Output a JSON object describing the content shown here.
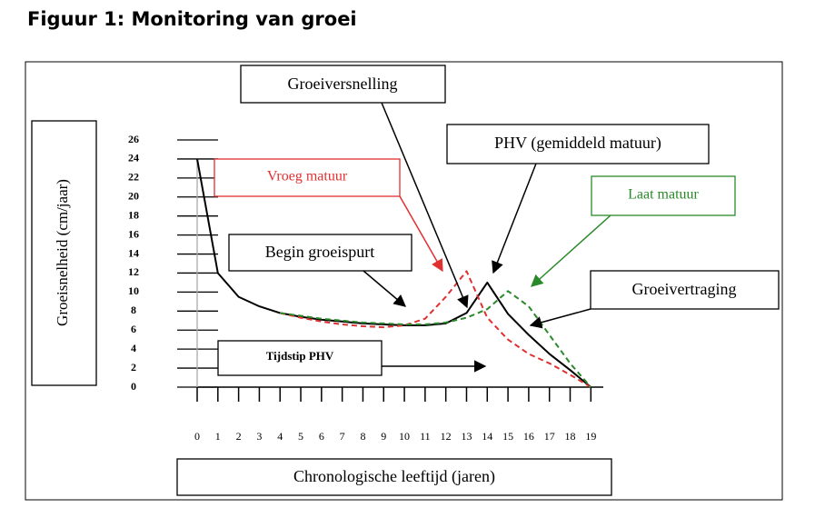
{
  "chart_data": {
    "type": "line",
    "title": "Figuur 1: Monitoring van groei",
    "xlabel": "Chronologische leeftijd (jaren)",
    "ylabel": "Groeisnelheid (cm/jaar)",
    "xlim": [
      0,
      19.6
    ],
    "ylim": [
      0,
      26
    ],
    "xticks": [
      0,
      1,
      2,
      3,
      4,
      5,
      6,
      7,
      8,
      9,
      10,
      11,
      12,
      13,
      14,
      15,
      16,
      17,
      18,
      19
    ],
    "yticks": [
      0,
      2,
      4,
      6,
      8,
      10,
      12,
      14,
      16,
      18,
      20,
      22,
      24,
      26
    ],
    "series": [
      {
        "color": "#000000",
        "style": "solid",
        "x": [
          0,
          1,
          2,
          3,
          4,
          5,
          6,
          7,
          8,
          9,
          10,
          11,
          12,
          13,
          14,
          15,
          16,
          17,
          18,
          19
        ],
        "values": [
          24,
          12,
          9.5,
          8.5,
          7.8,
          7.4,
          7.1,
          6.9,
          6.7,
          6.6,
          6.5,
          6.5,
          6.7,
          7.8,
          11,
          7.7,
          5.5,
          3.5,
          1.8,
          0
        ]
      },
      {
        "color": "#e03030",
        "style": "dashed",
        "x": [
          4,
          5,
          6,
          7,
          8,
          9,
          10,
          11,
          12,
          13,
          14,
          15,
          16,
          17,
          18,
          19
        ],
        "values": [
          7.8,
          7.3,
          6.9,
          6.6,
          6.4,
          6.3,
          6.5,
          7.2,
          9.5,
          12.2,
          7.3,
          5,
          3.5,
          2.5,
          1.3,
          0
        ]
      },
      {
        "color": "#2a8a2a",
        "style": "dashed",
        "x": [
          4,
          5,
          6,
          7,
          8,
          9,
          10,
          11,
          12,
          13,
          14,
          15,
          16,
          17,
          18,
          19
        ],
        "values": [
          7.8,
          7.5,
          7.2,
          7,
          6.8,
          6.7,
          6.6,
          6.6,
          6.8,
          7.3,
          8.2,
          10.1,
          8.5,
          5.5,
          2.5,
          0
        ]
      }
    ],
    "annotations": [
      "Groeiversnelling",
      "PHV (gemiddeld matuur)",
      "Vroeg matuur",
      "Laat matuur",
      "Begin groeispurt",
      "Groeivertraging",
      "Tijdstip PHV"
    ]
  }
}
